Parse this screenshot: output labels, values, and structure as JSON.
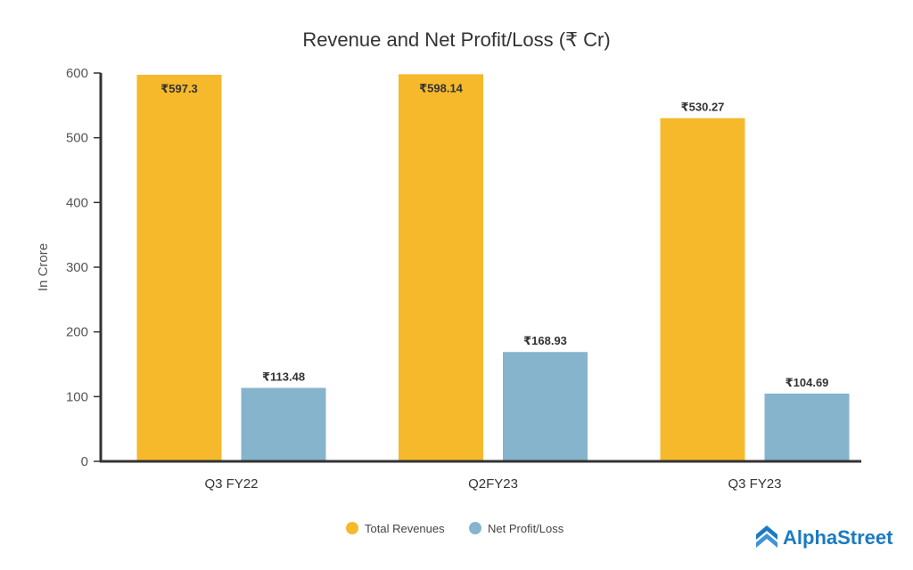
{
  "chart_data": {
    "type": "bar",
    "title": "Revenue and Net Profit/Loss (₹ Cr)",
    "xlabel": "",
    "ylabel": "In Crore",
    "ylim": [
      0,
      600
    ],
    "yticks": [
      0,
      100,
      200,
      300,
      400,
      500,
      600
    ],
    "grid": false,
    "categories": [
      "Q3 FY22",
      "Q2FY23",
      "Q3 FY23"
    ],
    "series": [
      {
        "name": "Total Revenues",
        "color": "#f6b92b",
        "values": [
          597.3,
          598.14,
          530.27
        ],
        "labels": [
          "₹597.3",
          "₹598.14",
          "₹530.27"
        ]
      },
      {
        "name": "Net Profit/Loss",
        "color": "#86b4cc",
        "values": [
          113.48,
          168.93,
          104.69
        ],
        "labels": [
          "₹113.48",
          "₹168.93",
          "₹104.69"
        ]
      }
    ],
    "legend_position": "bottom-center"
  },
  "branding": {
    "logo_text": "AlphaStreet",
    "logo_color": "#1b7ac2"
  }
}
